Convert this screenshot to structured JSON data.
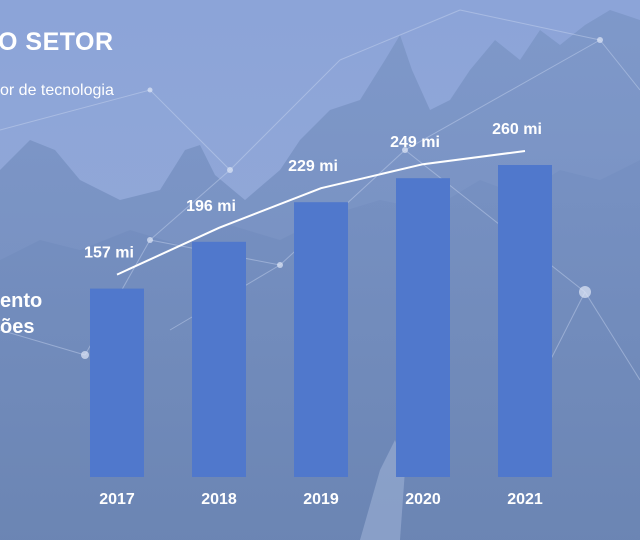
{
  "header": {
    "title": "O SETOR",
    "subtitle": "or de tecnologia"
  },
  "side_label": {
    "line1": "ento",
    "line2": "ões"
  },
  "colors": {
    "bar": "#5078cc",
    "text": "#ffffff",
    "trend": "#ffffff"
  },
  "chart_data": {
    "type": "bar",
    "categories": [
      "2017",
      "2018",
      "2019",
      "2020",
      "2021"
    ],
    "values": [
      157,
      196,
      229,
      249,
      260
    ],
    "value_labels": [
      "157 mi",
      "196 mi",
      "229 mi",
      "249 mi",
      "260 mi"
    ],
    "title": "",
    "xlabel": "",
    "ylabel": "",
    "ylim": [
      0,
      260
    ],
    "grid": false,
    "legend": "none",
    "trend_line": true
  }
}
